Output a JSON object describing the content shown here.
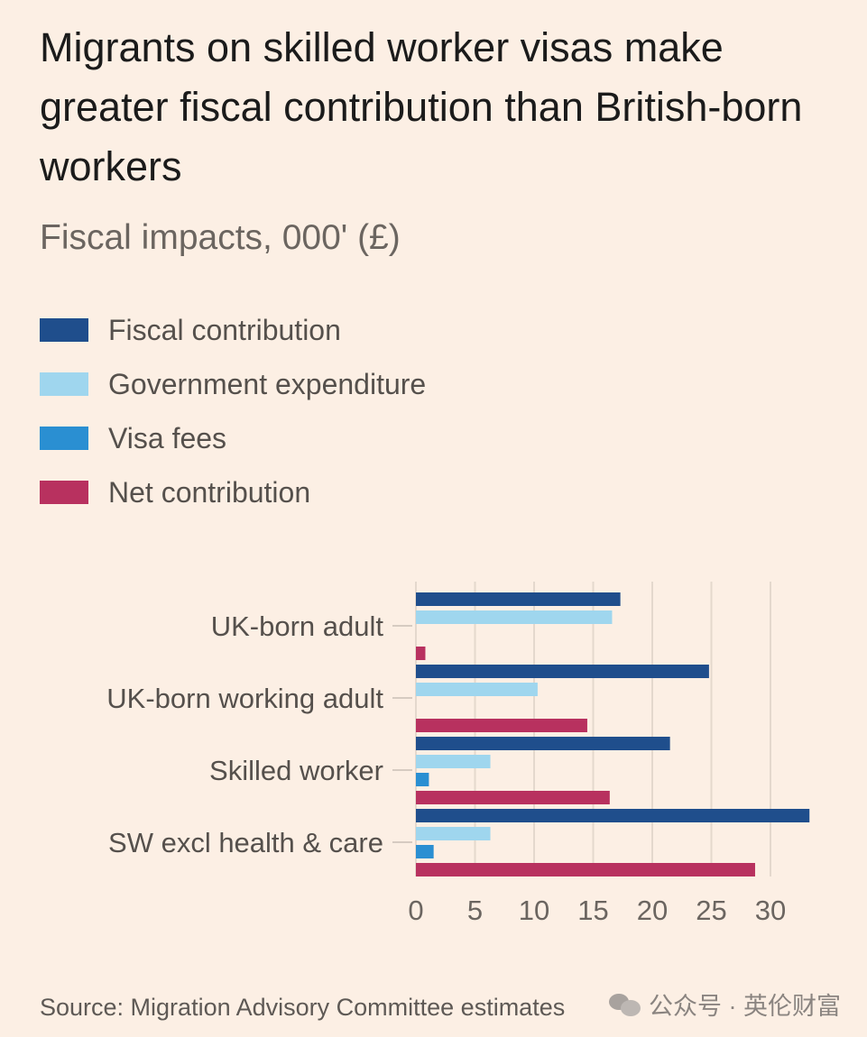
{
  "title": "Migrants on skilled worker visas make greater fiscal contribution than British-born workers",
  "subtitle": "Fiscal impacts, 000' (£)",
  "source": "Source: Migration Advisory Committee estimates",
  "watermark": "公众号 · 英伦财富",
  "chart_data": {
    "type": "bar",
    "orientation": "horizontal",
    "categories": [
      "UK-born adult",
      "UK-born working adult",
      "Skilled worker",
      "SW excl health & care"
    ],
    "series": [
      {
        "name": "Fiscal contribution",
        "color": "#1f4e8c",
        "values": [
          17.3,
          24.8,
          21.5,
          33.3
        ]
      },
      {
        "name": "Government expenditure",
        "color": "#9fd6ee",
        "values": [
          16.6,
          10.3,
          6.3,
          6.3
        ]
      },
      {
        "name": "Visa fees",
        "color": "#2a8fd2",
        "values": [
          0,
          0,
          1.1,
          1.5
        ]
      },
      {
        "name": "Net contribution",
        "color": "#b8315f",
        "values": [
          0.8,
          14.5,
          16.4,
          28.7
        ]
      }
    ],
    "xticks": [
      0,
      5,
      10,
      15,
      20,
      25,
      30
    ],
    "xlim": [
      0,
      34
    ],
    "grid": true,
    "legend": "top-left"
  }
}
